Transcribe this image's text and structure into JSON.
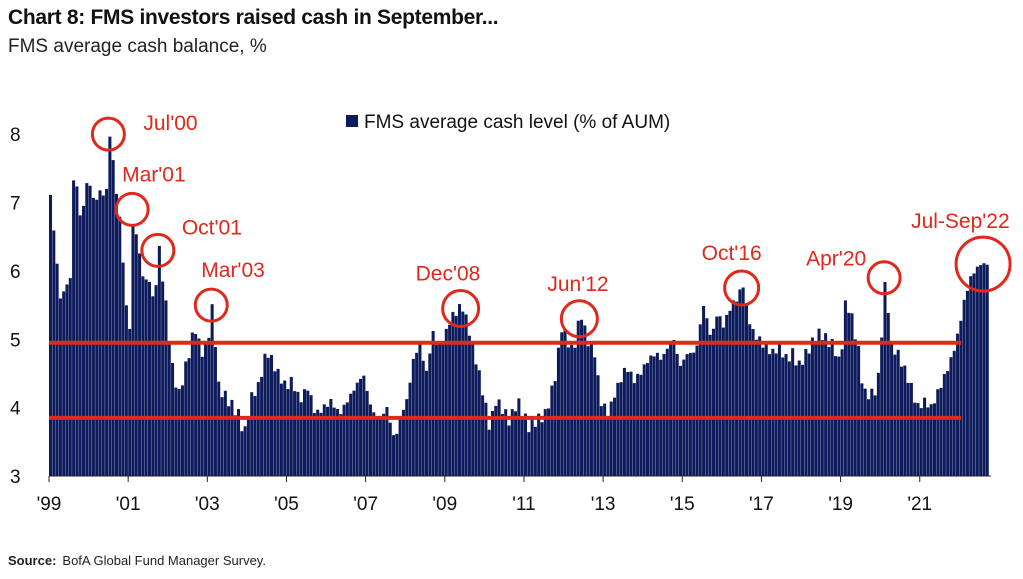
{
  "chart_data": {
    "type": "bar",
    "title": "Chart 8: FMS investors raised cash in September...",
    "subtitle": "FMS average cash balance, %",
    "source_label": "Source:",
    "source_text": "BofA Global Fund Manager Survey.",
    "legend": "FMS average cash level (% of AUM)",
    "legend_position": "top-center",
    "bar_color": "#0d1b5c",
    "annotation_color": "#e0281c",
    "ylim": [
      3,
      8.5
    ],
    "yticks": [
      3,
      4,
      5,
      6,
      7,
      8
    ],
    "xlim": [
      1999.0,
      2022.8
    ],
    "xticks": [
      {
        "label": "'99",
        "year": 1999
      },
      {
        "label": "'01",
        "year": 2001
      },
      {
        "label": "'03",
        "year": 2003
      },
      {
        "label": "'05",
        "year": 2005
      },
      {
        "label": "'07",
        "year": 2007
      },
      {
        "label": "'09",
        "year": 2009
      },
      {
        "label": "'11",
        "year": 2011
      },
      {
        "label": "'13",
        "year": 2013
      },
      {
        "label": "'15",
        "year": 2015
      },
      {
        "label": "'17",
        "year": 2017
      },
      {
        "label": "'19",
        "year": 2019
      },
      {
        "label": "'21",
        "year": 2021
      }
    ],
    "reference_lines": [
      4.95,
      3.85
    ],
    "grid": false,
    "series": [
      {
        "name": "FMS average cash level (% of AUM)",
        "points": [
          [
            1999.0,
            7.1
          ],
          [
            1999.25,
            5.6
          ],
          [
            1999.5,
            5.9
          ],
          [
            1999.6,
            7.6
          ],
          [
            1999.75,
            6.8
          ],
          [
            1999.85,
            7.0
          ],
          [
            1999.95,
            7.4
          ],
          [
            2000.1,
            7.0
          ],
          [
            2000.3,
            7.2
          ],
          [
            2000.4,
            7.0
          ],
          [
            2000.5,
            8.0
          ],
          [
            2000.6,
            7.5
          ],
          [
            2000.8,
            6.5
          ],
          [
            2000.9,
            5.5
          ],
          [
            2001.0,
            5.2
          ],
          [
            2001.1,
            6.9
          ],
          [
            2001.25,
            6.2
          ],
          [
            2001.4,
            5.8
          ],
          [
            2001.5,
            5.9
          ],
          [
            2001.6,
            5.5
          ],
          [
            2001.75,
            6.3
          ],
          [
            2001.9,
            5.6
          ],
          [
            2002.0,
            5.0
          ],
          [
            2002.1,
            4.5
          ],
          [
            2002.25,
            4.2
          ],
          [
            2002.5,
            4.8
          ],
          [
            2002.65,
            5.2
          ],
          [
            2002.8,
            4.8
          ],
          [
            2002.95,
            4.9
          ],
          [
            2003.1,
            5.5
          ],
          [
            2003.25,
            4.3
          ],
          [
            2003.5,
            4.1
          ],
          [
            2003.75,
            3.9
          ],
          [
            2003.9,
            3.6
          ],
          [
            2004.1,
            4.2
          ],
          [
            2004.25,
            4.3
          ],
          [
            2004.4,
            4.7
          ],
          [
            2004.5,
            4.8
          ],
          [
            2004.75,
            4.5
          ],
          [
            2004.95,
            4.3
          ],
          [
            2005.1,
            4.4
          ],
          [
            2005.3,
            4.1
          ],
          [
            2005.5,
            4.3
          ],
          [
            2005.7,
            3.9
          ],
          [
            2005.9,
            4.0
          ],
          [
            2006.1,
            4.1
          ],
          [
            2006.3,
            3.9
          ],
          [
            2006.5,
            4.1
          ],
          [
            2006.7,
            4.3
          ],
          [
            2006.9,
            4.5
          ],
          [
            2007.1,
            4.0
          ],
          [
            2007.3,
            3.8
          ],
          [
            2007.5,
            4.0
          ],
          [
            2007.7,
            3.5
          ],
          [
            2007.85,
            3.9
          ],
          [
            2008.0,
            4.1
          ],
          [
            2008.2,
            4.8
          ],
          [
            2008.35,
            4.9
          ],
          [
            2008.5,
            4.5
          ],
          [
            2008.65,
            5.1
          ],
          [
            2008.8,
            4.9
          ],
          [
            2008.95,
            5.0
          ],
          [
            2009.1,
            5.3
          ],
          [
            2009.25,
            5.4
          ],
          [
            2009.4,
            5.5
          ],
          [
            2009.55,
            5.2
          ],
          [
            2009.75,
            4.7
          ],
          [
            2009.9,
            4.3
          ],
          [
            2010.1,
            3.7
          ],
          [
            2010.25,
            4.1
          ],
          [
            2010.4,
            4.0
          ],
          [
            2010.6,
            3.8
          ],
          [
            2010.8,
            4.1
          ],
          [
            2010.95,
            3.9
          ],
          [
            2011.1,
            3.7
          ],
          [
            2011.25,
            3.8
          ],
          [
            2011.5,
            3.9
          ],
          [
            2011.65,
            4.2
          ],
          [
            2011.8,
            4.6
          ],
          [
            2011.9,
            5.2
          ],
          [
            2012.05,
            5.0
          ],
          [
            2012.2,
            4.8
          ],
          [
            2012.4,
            5.4
          ],
          [
            2012.55,
            5.0
          ],
          [
            2012.75,
            4.8
          ],
          [
            2012.9,
            4.1
          ],
          [
            2013.1,
            3.9
          ],
          [
            2013.25,
            4.2
          ],
          [
            2013.4,
            4.4
          ],
          [
            2013.55,
            4.6
          ],
          [
            2013.75,
            4.4
          ],
          [
            2013.9,
            4.5
          ],
          [
            2014.1,
            4.7
          ],
          [
            2014.3,
            4.8
          ],
          [
            2014.45,
            4.7
          ],
          [
            2014.6,
            4.9
          ],
          [
            2014.75,
            5.0
          ],
          [
            2014.9,
            4.6
          ],
          [
            2015.1,
            4.8
          ],
          [
            2015.3,
            4.8
          ],
          [
            2015.5,
            5.5
          ],
          [
            2015.7,
            5.0
          ],
          [
            2015.85,
            5.4
          ],
          [
            2016.0,
            5.2
          ],
          [
            2016.2,
            5.5
          ],
          [
            2016.35,
            5.6
          ],
          [
            2016.5,
            5.8
          ],
          [
            2016.6,
            5.4
          ],
          [
            2016.75,
            5.1
          ],
          [
            2016.9,
            5.0
          ],
          [
            2017.05,
            4.9
          ],
          [
            2017.25,
            4.8
          ],
          [
            2017.4,
            4.9
          ],
          [
            2017.6,
            4.7
          ],
          [
            2017.75,
            4.8
          ],
          [
            2017.9,
            4.6
          ],
          [
            2018.1,
            4.8
          ],
          [
            2018.3,
            5.0
          ],
          [
            2018.45,
            5.1
          ],
          [
            2018.6,
            5.0
          ],
          [
            2018.8,
            4.9
          ],
          [
            2018.95,
            4.6
          ],
          [
            2019.1,
            5.6
          ],
          [
            2019.25,
            5.3
          ],
          [
            2019.4,
            4.9
          ],
          [
            2019.55,
            4.2
          ],
          [
            2019.75,
            4.2
          ],
          [
            2019.9,
            4.3
          ],
          [
            2020.1,
            5.9
          ],
          [
            2020.25,
            4.9
          ],
          [
            2020.4,
            4.8
          ],
          [
            2020.55,
            4.6
          ],
          [
            2020.75,
            4.3
          ],
          [
            2020.9,
            4.0
          ],
          [
            2021.1,
            4.1
          ],
          [
            2021.25,
            4.0
          ],
          [
            2021.4,
            4.2
          ],
          [
            2021.55,
            4.4
          ],
          [
            2021.75,
            4.7
          ],
          [
            2021.9,
            5.0
          ],
          [
            2022.0,
            5.3
          ],
          [
            2022.1,
            5.6
          ],
          [
            2022.25,
            5.9
          ],
          [
            2022.35,
            6.0
          ],
          [
            2022.5,
            6.1
          ],
          [
            2022.6,
            6.1
          ],
          [
            2022.7,
            6.1
          ]
        ]
      }
    ],
    "annotations": [
      {
        "label": "Jul'00",
        "x": 2000.5,
        "y": 8.0,
        "text_dx": 35,
        "text_dy": -4,
        "r": 16
      },
      {
        "label": "Mar'01",
        "x": 2001.1,
        "y": 6.9,
        "text_dx": -10,
        "text_dy": -28,
        "r": 16
      },
      {
        "label": "Oct'01",
        "x": 2001.75,
        "y": 6.3,
        "text_dx": 24,
        "text_dy": -16,
        "r": 16
      },
      {
        "label": "Mar'03",
        "x": 2003.1,
        "y": 5.5,
        "text_dx": -10,
        "text_dy": -28,
        "r": 16
      },
      {
        "label": "Dec'08",
        "x": 2009.4,
        "y": 5.45,
        "text_dx": -45,
        "text_dy": -28,
        "r": 18
      },
      {
        "label": "Jun'12",
        "x": 2012.4,
        "y": 5.3,
        "text_dx": -32,
        "text_dy": -28,
        "r": 18
      },
      {
        "label": "Oct'16",
        "x": 2016.5,
        "y": 5.75,
        "text_dx": -40,
        "text_dy": -28,
        "r": 17
      },
      {
        "label": "Apr'20",
        "x": 2020.1,
        "y": 5.9,
        "text_dx": -78,
        "text_dy": -12,
        "r": 16
      },
      {
        "label": "Jul-Sep'22",
        "x": 2022.6,
        "y": 6.1,
        "text_dx": -72,
        "text_dy": -36,
        "r": 27
      }
    ]
  }
}
